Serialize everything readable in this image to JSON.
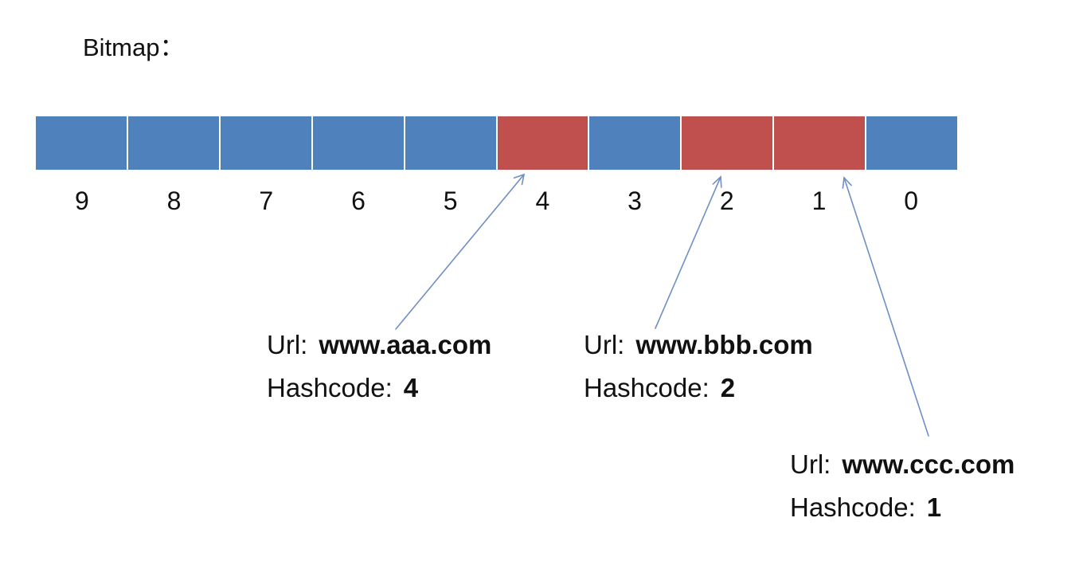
{
  "title": "Bitmap：",
  "colors": {
    "cell_empty": "#4f81bd",
    "cell_set": "#c0504d",
    "arrow": "#6f8fc6"
  },
  "bitmap": {
    "cells": [
      {
        "index": "9",
        "set": false
      },
      {
        "index": "8",
        "set": false
      },
      {
        "index": "7",
        "set": false
      },
      {
        "index": "6",
        "set": false
      },
      {
        "index": "5",
        "set": false
      },
      {
        "index": "4",
        "set": true
      },
      {
        "index": "3",
        "set": false
      },
      {
        "index": "2",
        "set": true
      },
      {
        "index": "1",
        "set": true
      },
      {
        "index": "0",
        "set": false
      }
    ]
  },
  "entries": [
    {
      "url_label": "Url:",
      "url": "www.aaa.com",
      "hash_label": "Hashcode:",
      "hash": "4"
    },
    {
      "url_label": "Url:",
      "url": "www.bbb.com",
      "hash_label": "Hashcode:",
      "hash": "2"
    },
    {
      "url_label": "Url:",
      "url": "www.ccc.com",
      "hash_label": "Hashcode:",
      "hash": "1"
    }
  ]
}
